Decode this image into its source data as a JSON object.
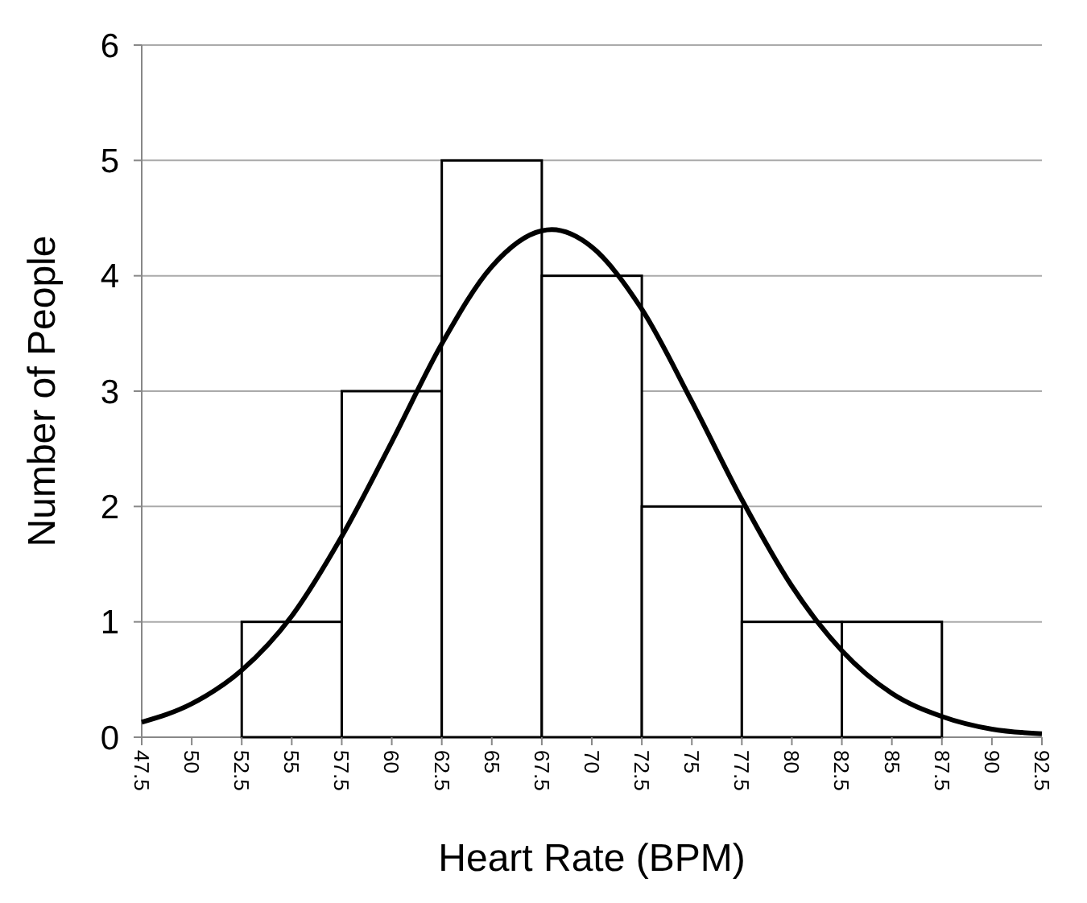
{
  "chart_data": {
    "type": "histogram",
    "xlabel": "Heart Rate (BPM)",
    "ylabel": "Number of People",
    "bins": [
      47.5,
      52.5,
      57.5,
      62.5,
      67.5,
      72.5,
      77.5,
      82.5,
      87.5,
      92.5
    ],
    "values": [
      0,
      1,
      3,
      5,
      4,
      2,
      1,
      1,
      0
    ],
    "color": "#ffffff",
    "xlim": [
      47.5,
      92.5
    ],
    "xticks": [
      47.5,
      50,
      52.5,
      55,
      57.5,
      60,
      62.5,
      65,
      67.5,
      70,
      72.5,
      75,
      77.5,
      80,
      82.5,
      85,
      87.5,
      90,
      92.5
    ],
    "ylim": [
      0,
      6
    ],
    "yticks": [
      0,
      1,
      2,
      3,
      4,
      5,
      6
    ],
    "grid": "y",
    "series": [
      {
        "type": "line",
        "color": "#000000",
        "x": [
          47.5,
          50,
          52.5,
          55,
          57.5,
          60,
          62.5,
          65,
          67.5,
          68,
          70,
          72.5,
          75,
          77.5,
          80,
          82.5,
          85,
          87.5,
          90,
          92.5
        ],
        "values": [
          0.13,
          0.29,
          0.58,
          1.05,
          1.74,
          2.56,
          3.41,
          4.08,
          4.39,
          4.4,
          4.25,
          3.71,
          2.91,
          2.06,
          1.31,
          0.75,
          0.38,
          0.18,
          0.07,
          0.03
        ]
      }
    ]
  }
}
